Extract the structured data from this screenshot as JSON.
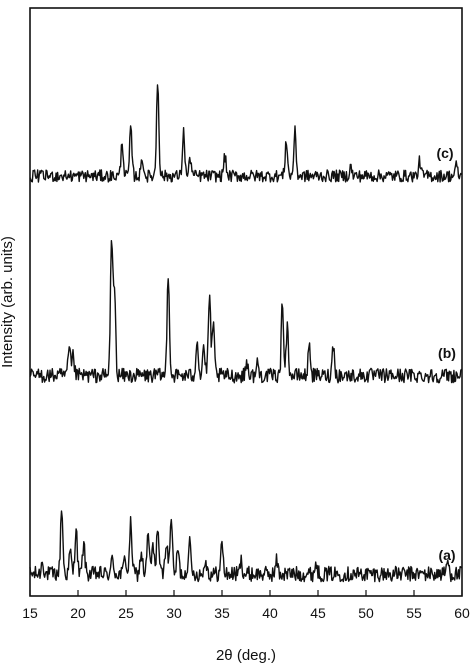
{
  "chart_data": {
    "type": "line",
    "title": "",
    "xlabel": "2θ (deg.)",
    "ylabel": "Intensity (arb. units)",
    "xlim": [
      15,
      60
    ],
    "x_ticks": [
      15,
      20,
      25,
      30,
      35,
      40,
      45,
      50,
      55,
      60
    ],
    "grid": false,
    "legend": "none",
    "trace_color": "#111111",
    "series": [
      {
        "name": "(a)",
        "baseline": 1,
        "noise": 0.7,
        "peaks": [
          {
            "x": 16.3,
            "h": 1.2
          },
          {
            "x": 18.3,
            "h": 6.0
          },
          {
            "x": 19.2,
            "h": 2.0
          },
          {
            "x": 19.8,
            "h": 4.2
          },
          {
            "x": 20.6,
            "h": 2.8
          },
          {
            "x": 23.6,
            "h": 1.4
          },
          {
            "x": 24.9,
            "h": 1.6
          },
          {
            "x": 25.5,
            "h": 4.6
          },
          {
            "x": 26.6,
            "h": 2.0
          },
          {
            "x": 27.3,
            "h": 3.6
          },
          {
            "x": 27.8,
            "h": 2.6
          },
          {
            "x": 28.3,
            "h": 4.4
          },
          {
            "x": 29.2,
            "h": 3.2
          },
          {
            "x": 29.7,
            "h": 5.4
          },
          {
            "x": 30.4,
            "h": 2.2
          },
          {
            "x": 31.6,
            "h": 3.2
          },
          {
            "x": 33.3,
            "h": 1.4
          },
          {
            "x": 35.0,
            "h": 2.8
          },
          {
            "x": 37.0,
            "h": 1.2
          },
          {
            "x": 40.7,
            "h": 1.2
          },
          {
            "x": 44.8,
            "h": 1.0
          },
          {
            "x": 58.5,
            "h": 1.2
          }
        ]
      },
      {
        "name": "(b)",
        "baseline": 1,
        "noise": 0.7,
        "peaks": [
          {
            "x": 19.1,
            "h": 2.6
          },
          {
            "x": 19.5,
            "h": 1.8
          },
          {
            "x": 23.5,
            "h": 13.0
          },
          {
            "x": 23.8,
            "h": 8.0
          },
          {
            "x": 29.4,
            "h": 10.0
          },
          {
            "x": 32.4,
            "h": 3.6
          },
          {
            "x": 33.1,
            "h": 2.8
          },
          {
            "x": 33.7,
            "h": 7.6
          },
          {
            "x": 34.1,
            "h": 4.6
          },
          {
            "x": 37.6,
            "h": 1.4
          },
          {
            "x": 38.7,
            "h": 1.2
          },
          {
            "x": 41.3,
            "h": 7.0
          },
          {
            "x": 41.8,
            "h": 4.6
          },
          {
            "x": 44.1,
            "h": 3.0
          },
          {
            "x": 46.6,
            "h": 3.0
          }
        ]
      },
      {
        "name": "(c)",
        "baseline": 1,
        "noise": 0.6,
        "peaks": [
          {
            "x": 24.6,
            "h": 3.4
          },
          {
            "x": 25.5,
            "h": 4.6
          },
          {
            "x": 26.7,
            "h": 1.8
          },
          {
            "x": 28.3,
            "h": 9.6
          },
          {
            "x": 31.0,
            "h": 4.4
          },
          {
            "x": 31.7,
            "h": 1.8
          },
          {
            "x": 35.3,
            "h": 2.0
          },
          {
            "x": 41.7,
            "h": 3.6
          },
          {
            "x": 42.6,
            "h": 4.4
          },
          {
            "x": 48.4,
            "h": 0.9
          },
          {
            "x": 55.6,
            "h": 1.5
          },
          {
            "x": 59.4,
            "h": 1.0
          }
        ]
      }
    ]
  }
}
